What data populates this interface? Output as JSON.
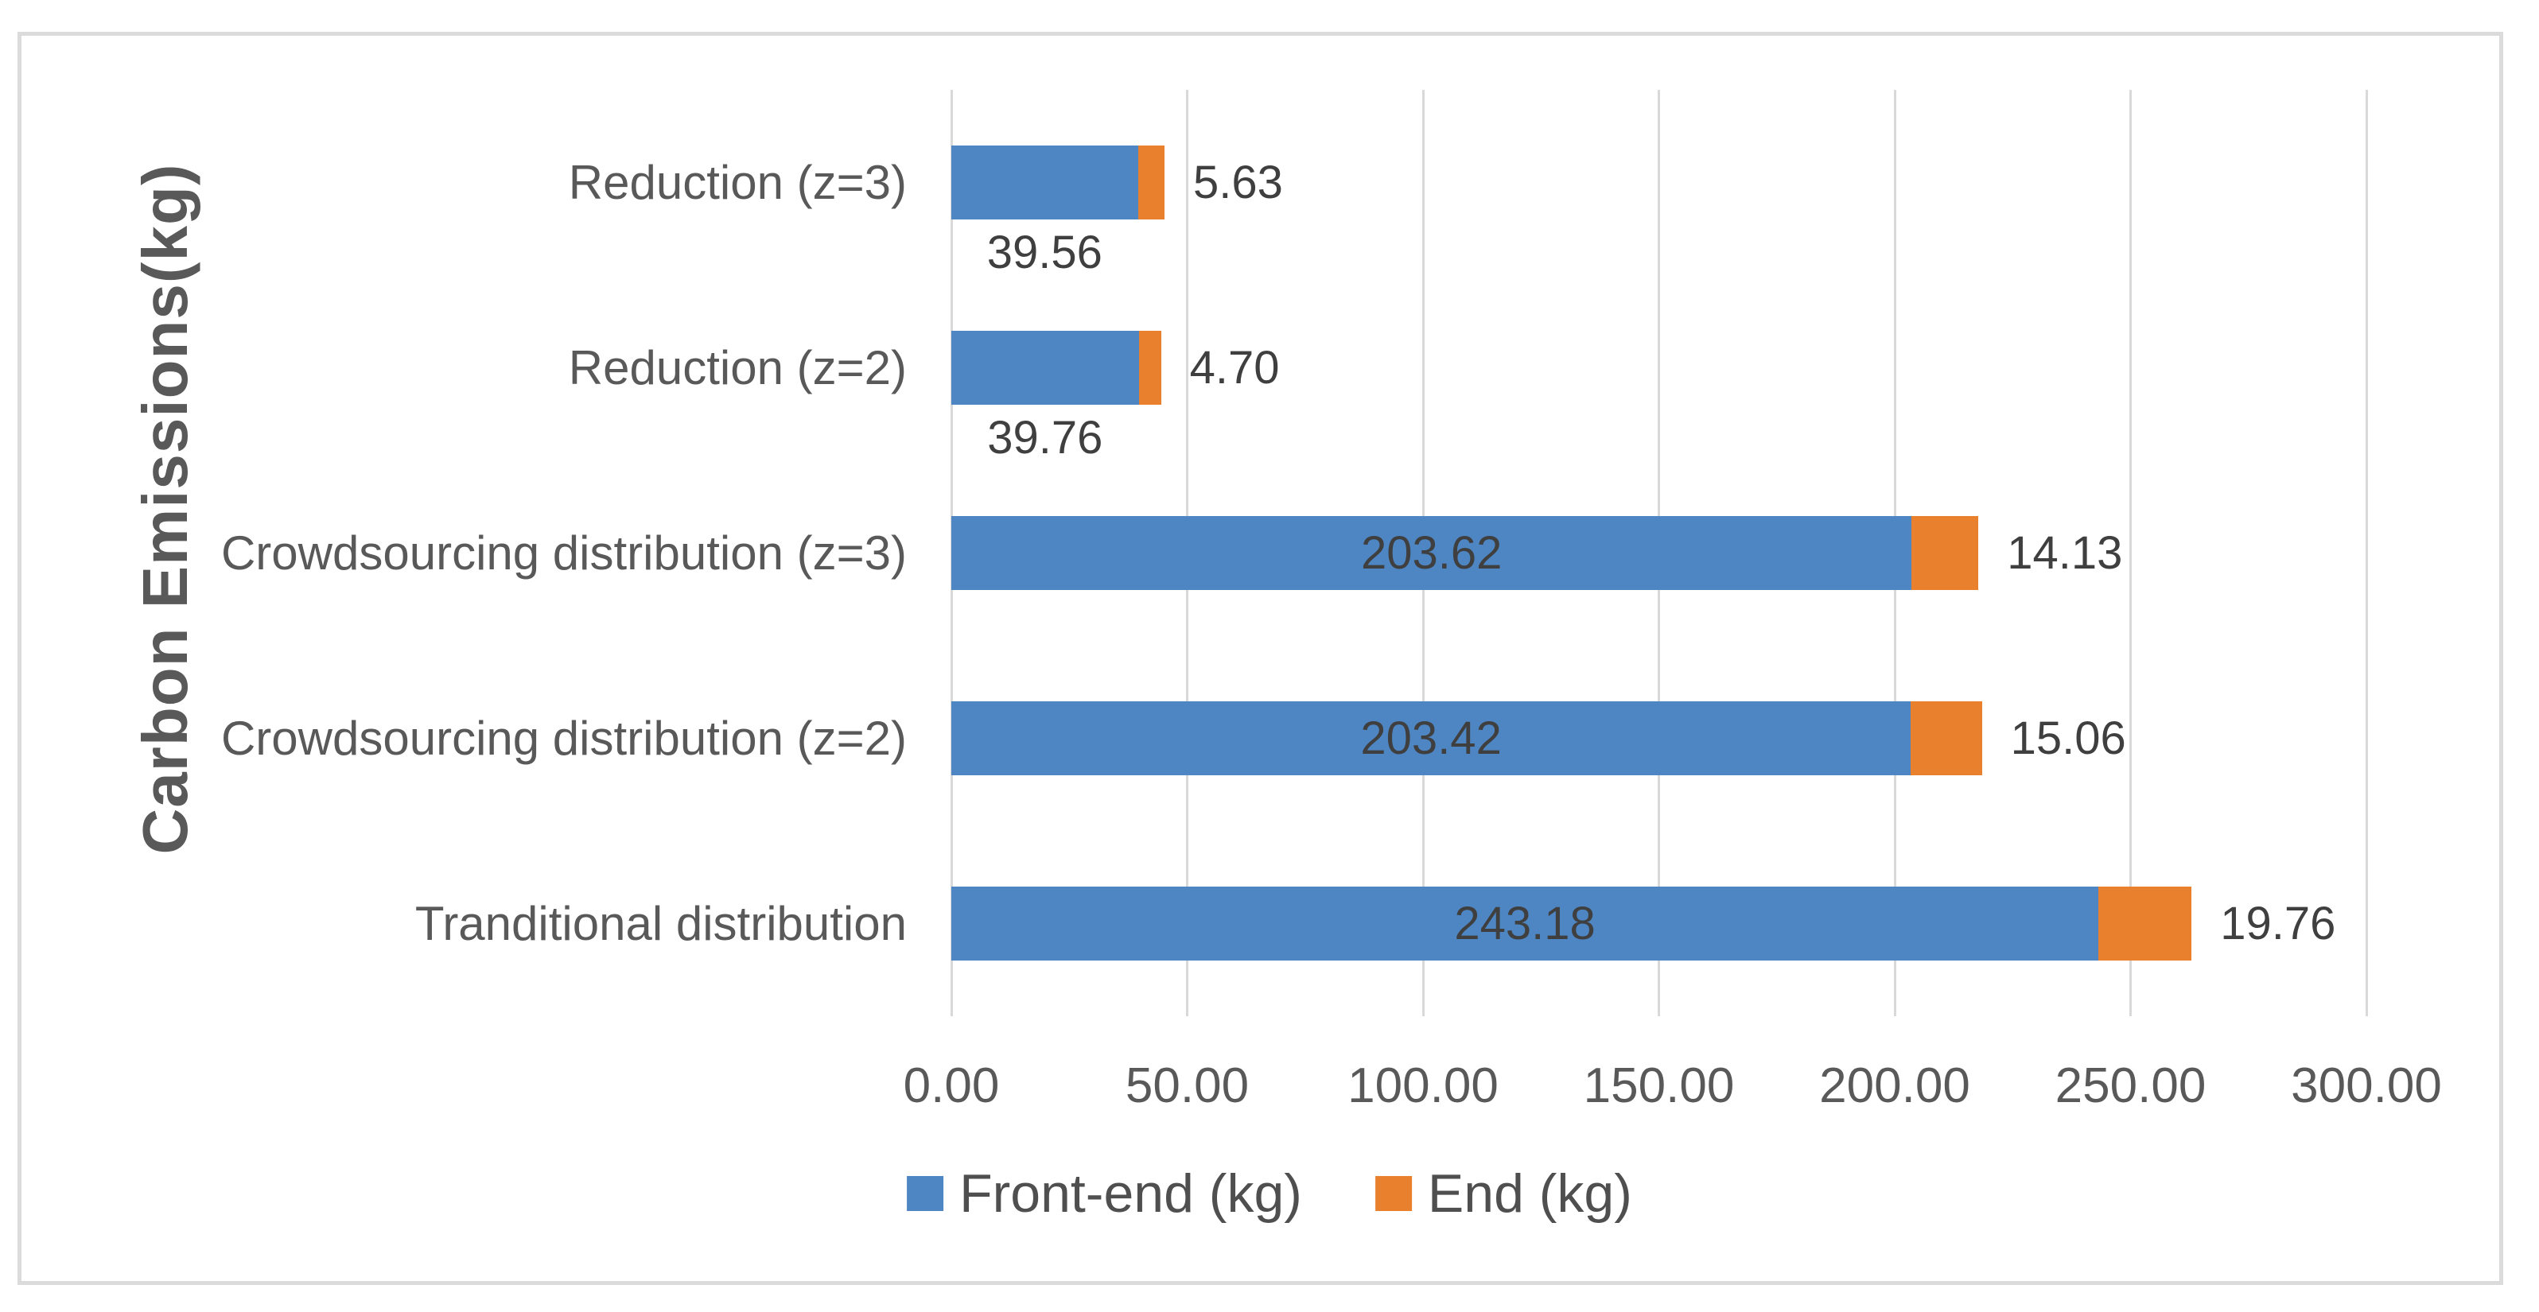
{
  "chart_data": {
    "type": "bar",
    "orientation": "horizontal",
    "title": "",
    "ylabel": "Carbon Emissions(kg)",
    "xlabel": "",
    "categories": [
      "Reduction (z=3)",
      "Reduction (z=2)",
      "Crowdsourcing distribution (z=3)",
      "Crowdsourcing distribution (z=2)",
      "Tranditional distribution"
    ],
    "series": [
      {
        "name": "Front-end (kg)",
        "color": "#4E86C4",
        "values": [
          39.56,
          39.76,
          203.62,
          203.42,
          243.18
        ],
        "value_labels": [
          "39.56",
          "39.76",
          "203.62",
          "203.42",
          "243.18"
        ],
        "label_placement": [
          "below",
          "below",
          "inside",
          "inside",
          "inside"
        ]
      },
      {
        "name": "End (kg)",
        "color": "#E8802E",
        "values": [
          5.63,
          4.7,
          14.13,
          15.06,
          19.76
        ],
        "value_labels": [
          "5.63",
          "4.70",
          "14.13",
          "15.06",
          "19.76"
        ],
        "label_placement": [
          "right",
          "right",
          "right",
          "right",
          "right"
        ]
      }
    ],
    "x_axis": {
      "min": 0,
      "max": 300,
      "step": 50,
      "tick_labels": [
        "0.00",
        "50.00",
        "100.00",
        "150.00",
        "200.00",
        "250.00",
        "300.00"
      ]
    },
    "legend": {
      "position": "bottom",
      "entries": [
        "Front-end (kg)",
        "End (kg)"
      ]
    },
    "grid": true,
    "colors": {
      "grid": "#D9D9D9",
      "axis_text": "#595959",
      "data_label_text": "#3F3F3F",
      "frame_border": "#DBDBDB"
    }
  }
}
